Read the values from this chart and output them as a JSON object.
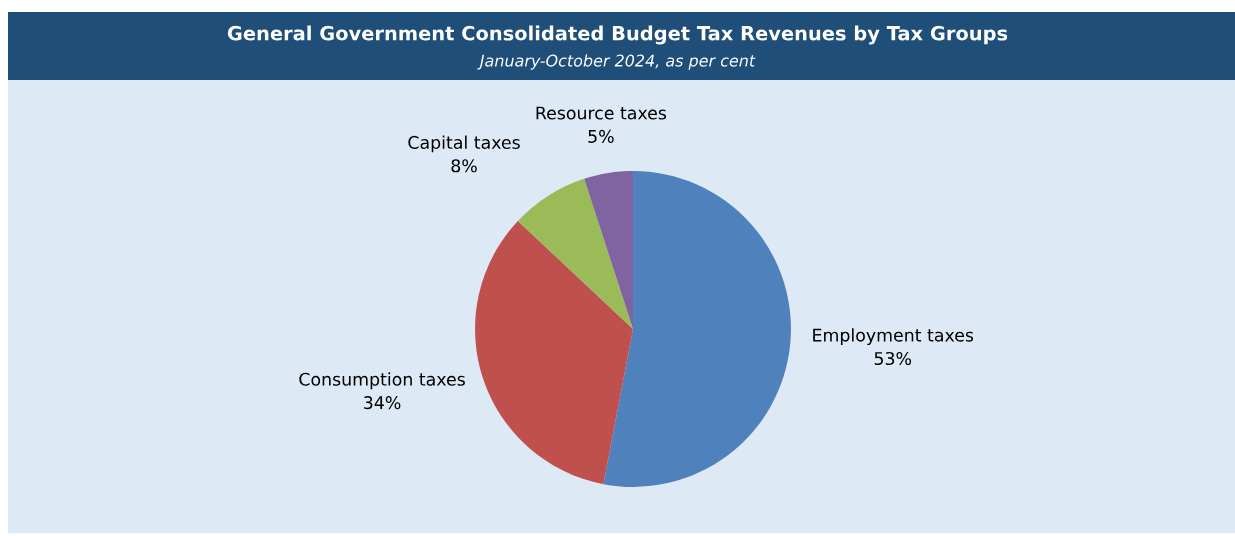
{
  "chart_data": {
    "type": "pie",
    "title": "General Government Consolidated Budget Tax Revenues by Tax Groups",
    "subtitle": "January-October 2024, as per cent",
    "categories": [
      "Employment taxes",
      "Consumption taxes",
      "Capital taxes",
      "Resource taxes"
    ],
    "values": [
      53,
      34,
      8,
      5
    ],
    "value_labels": [
      "53%",
      "34%",
      "8%",
      "5%"
    ],
    "colors": [
      "#4f81bd",
      "#c0504d",
      "#9bbb59",
      "#8064a2"
    ],
    "legend": false
  }
}
